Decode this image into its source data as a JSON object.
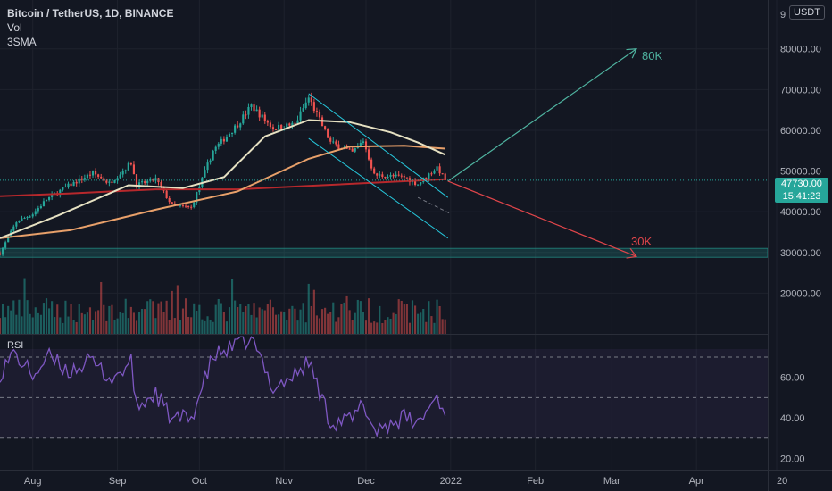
{
  "legend": {
    "symbol": "Bitcoin / TetherUS, 1D, BINANCE",
    "line2": "Vol",
    "line3": "3SMA"
  },
  "currency_badge": "USDT",
  "last_price": {
    "price": "47730.00",
    "countdown": "15:41:23"
  },
  "rsi_label": "RSI",
  "annotations": {
    "bull_target": "80K",
    "bear_target": "30K"
  },
  "colors": {
    "background": "#131722",
    "up": "#26a69a",
    "down": "#ef5350",
    "bull_arrow": "#4fb3a0",
    "bear_arrow": "#e0454a",
    "sma_fast": "#e6e1c2",
    "sma_mid": "#e8a06a",
    "sma_slow": "#b7282c",
    "rsi_line": "#7e57c2",
    "channel": "#26c6da"
  },
  "chart_data": [
    {
      "type": "candlestick",
      "title": "Bitcoin / TetherUS, 1D, BINANCE",
      "x_ticks": [
        "Aug",
        "Sep",
        "Oct",
        "Nov",
        "Dec",
        "2022",
        "Feb",
        "Mar",
        "Apr",
        "20"
      ],
      "y_ticks": [
        "20000.00",
        "30000.00",
        "40000.00",
        "50000.00",
        "60000.00",
        "70000.00",
        "80000.00"
      ],
      "ylim": [
        10000,
        92000
      ],
      "x_range": [
        "2021-07-20",
        "2022-05-01"
      ],
      "price_path": [
        [
          "2021-07-20",
          29800
        ],
        [
          "2021-07-26",
          37500
        ],
        [
          "2021-08-01",
          39500
        ],
        [
          "2021-08-06",
          43000
        ],
        [
          "2021-08-13",
          46000
        ],
        [
          "2021-08-23",
          49500
        ],
        [
          "2021-08-29",
          47000
        ],
        [
          "2021-09-06",
          52000
        ],
        [
          "2021-09-08",
          46500
        ],
        [
          "2021-09-15",
          48000
        ],
        [
          "2021-09-21",
          41500
        ],
        [
          "2021-09-28",
          41000
        ],
        [
          "2021-10-06",
          55000
        ],
        [
          "2021-10-15",
          61500
        ],
        [
          "2021-10-20",
          66000
        ],
        [
          "2021-10-28",
          60500
        ],
        [
          "2021-11-05",
          61500
        ],
        [
          "2021-11-10",
          68000
        ],
        [
          "2021-11-18",
          57000
        ],
        [
          "2021-11-26",
          54500
        ],
        [
          "2021-11-30",
          57500
        ],
        [
          "2021-12-04",
          49000
        ],
        [
          "2021-12-15",
          48500
        ],
        [
          "2021-12-20",
          46800
        ],
        [
          "2021-12-27",
          51000
        ],
        [
          "2021-12-30",
          47730
        ]
      ],
      "sma_fast": [
        [
          "2021-07-20",
          33500
        ],
        [
          "2021-08-10",
          39000
        ],
        [
          "2021-09-05",
          46500
        ],
        [
          "2021-09-25",
          45800
        ],
        [
          "2021-10-10",
          48500
        ],
        [
          "2021-10-25",
          58500
        ],
        [
          "2021-11-10",
          62500
        ],
        [
          "2021-11-25",
          62000
        ],
        [
          "2021-12-10",
          59500
        ],
        [
          "2021-12-20",
          57000
        ],
        [
          "2021-12-30",
          54000
        ]
      ],
      "sma_mid": [
        [
          "2021-07-20",
          33500
        ],
        [
          "2021-08-15",
          35500
        ],
        [
          "2021-09-15",
          40500
        ],
        [
          "2021-10-15",
          45000
        ],
        [
          "2021-11-10",
          53000
        ],
        [
          "2021-11-25",
          56000
        ],
        [
          "2021-12-15",
          56200
        ],
        [
          "2021-12-30",
          55500
        ]
      ],
      "sma_slow": [
        [
          "2021-07-20",
          43800
        ],
        [
          "2021-08-15",
          44500
        ],
        [
          "2021-09-15",
          45500
        ],
        [
          "2021-10-15",
          45500
        ],
        [
          "2021-11-15",
          46500
        ],
        [
          "2021-12-15",
          47500
        ],
        [
          "2021-12-30",
          48000
        ]
      ],
      "support_zone": [
        28800,
        31000
      ],
      "channel": {
        "upper": [
          [
            "2021-11-10",
            69000
          ],
          [
            "2021-12-31",
            43500
          ]
        ],
        "lower": [
          [
            "2021-11-10",
            58000
          ],
          [
            "2021-12-31",
            33500
          ]
        ],
        "mid": [
          [
            "2021-12-20",
            43500
          ],
          [
            "2022-01-01",
            39500
          ]
        ]
      },
      "arrows": {
        "bull": [
          [
            "2021-12-31",
            47500
          ],
          [
            "2022-03-10",
            80000
          ]
        ],
        "bear": [
          [
            "2021-12-31",
            47500
          ],
          [
            "2022-03-10",
            29000
          ]
        ]
      },
      "last_price": 47730
    },
    {
      "type": "bar",
      "title": "Vol",
      "series": [
        {
          "name": "Vol"
        }
      ]
    },
    {
      "type": "line",
      "title": "RSI",
      "y_ticks": [
        "20.00",
        "40.00",
        "60.00"
      ],
      "ylim": [
        14,
        81
      ],
      "levels": [
        30,
        50,
        70
      ],
      "values": [
        [
          "2021-07-20",
          62
        ],
        [
          "2021-07-25",
          72
        ],
        [
          "2021-08-01",
          61
        ],
        [
          "2021-08-07",
          70
        ],
        [
          "2021-08-14",
          63
        ],
        [
          "2021-08-22",
          68
        ],
        [
          "2021-08-30",
          59
        ],
        [
          "2021-09-06",
          67
        ],
        [
          "2021-09-08",
          45
        ],
        [
          "2021-09-15",
          52
        ],
        [
          "2021-09-21",
          39
        ],
        [
          "2021-09-28",
          40
        ],
        [
          "2021-10-06",
          70
        ],
        [
          "2021-10-15",
          76
        ],
        [
          "2021-10-20",
          79
        ],
        [
          "2021-10-28",
          55
        ],
        [
          "2021-11-05",
          61
        ],
        [
          "2021-11-10",
          68
        ],
        [
          "2021-11-18",
          38
        ],
        [
          "2021-11-26",
          39
        ],
        [
          "2021-11-30",
          47
        ],
        [
          "2021-12-04",
          34
        ],
        [
          "2021-12-15",
          40
        ],
        [
          "2021-12-20",
          37
        ],
        [
          "2021-12-27",
          51
        ],
        [
          "2021-12-30",
          41
        ]
      ]
    }
  ]
}
